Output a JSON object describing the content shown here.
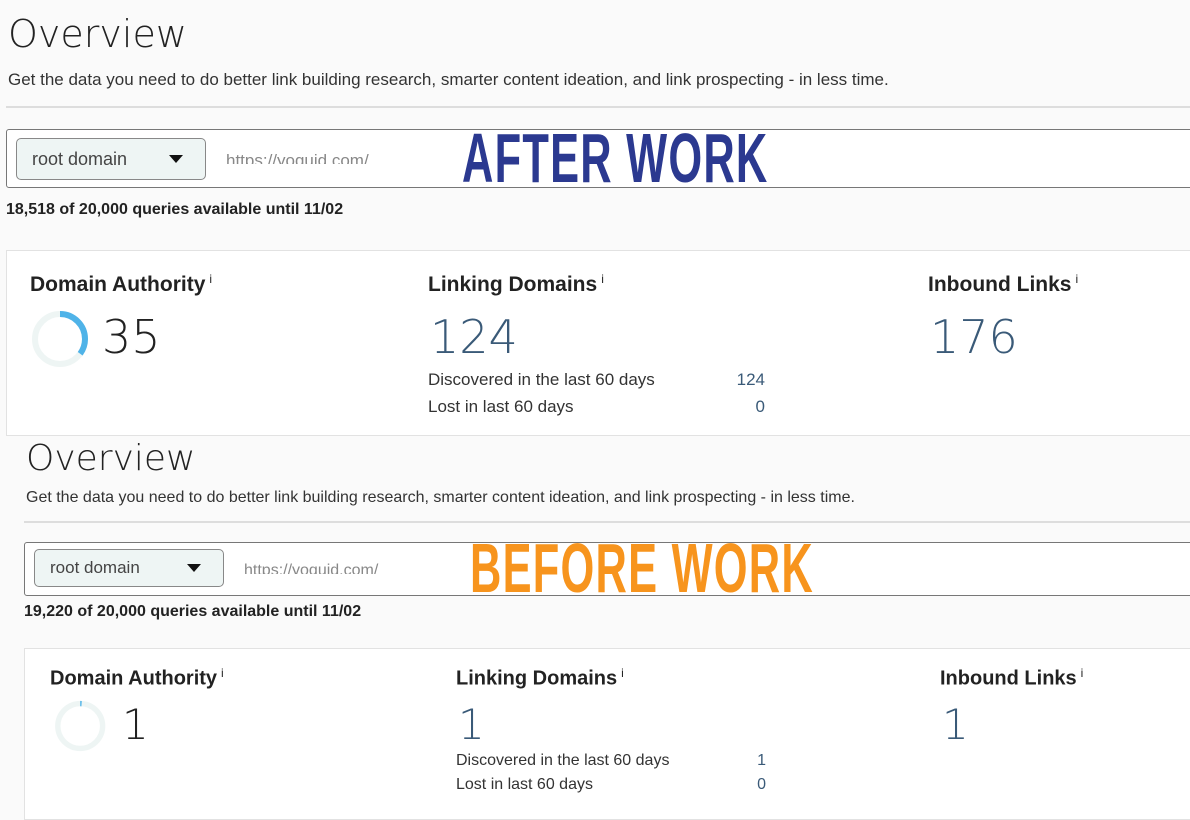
{
  "after": {
    "stamp": "AFTER WORK",
    "stamp_color": "#2b3990",
    "title": "Overview",
    "subtitle": "Get the data you need to do better link building research, smarter content ideation, and link prospecting - in less time.",
    "dropdown": "root domain",
    "url": "https://yoquid.com/",
    "queries": "18,518 of 20,000 queries available until 11/02",
    "domain_authority": {
      "label": "Domain Authority",
      "info": "i",
      "value": "35",
      "ring_fraction": 0.35
    },
    "linking_domains": {
      "label": "Linking Domains",
      "info": "i",
      "value": "124",
      "discovered_label": "Discovered in the last 60 days",
      "discovered": "124",
      "lost_label": "Lost in last 60 days",
      "lost": "0"
    },
    "inbound_links": {
      "label": "Inbound Links",
      "info": "i",
      "value": "176"
    }
  },
  "before": {
    "stamp": "BEFORE WORK",
    "stamp_color": "#f7941d",
    "title": "Overview",
    "subtitle": "Get the data you need to do better link building research, smarter content ideation, and link prospecting - in less time.",
    "dropdown": "root domain",
    "url": "https://yoquid.com/",
    "queries": "19,220 of 20,000 queries available until 11/02",
    "domain_authority": {
      "label": "Domain Authority",
      "info": "i",
      "value": "1",
      "ring_fraction": 0.01
    },
    "linking_domains": {
      "label": "Linking Domains",
      "info": "i",
      "value": "1",
      "discovered_label": "Discovered in the last 60 days",
      "discovered": "1",
      "lost_label": "Lost in last 60 days",
      "lost": "0"
    },
    "inbound_links": {
      "label": "Inbound Links",
      "info": "i",
      "value": "1"
    }
  },
  "colors": {
    "ring": "#4fb3e8",
    "ring_track": "#eef5f4"
  }
}
